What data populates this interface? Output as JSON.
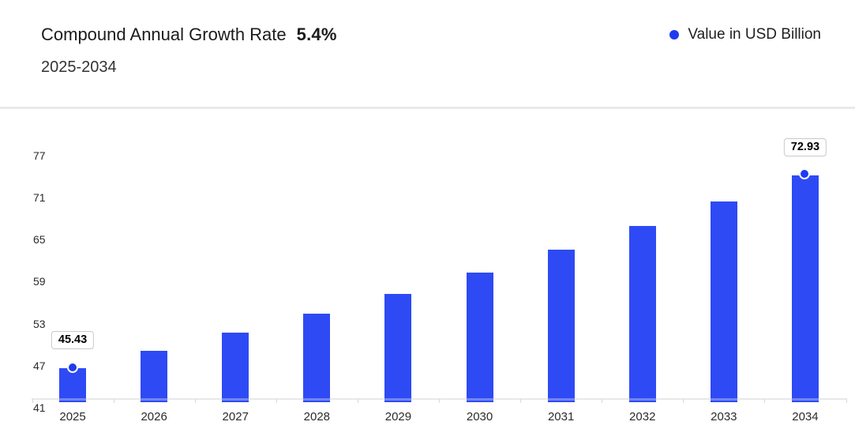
{
  "header": {
    "title": "Compound Annual Growth Rate",
    "cagr_label": "5.4%",
    "subtitle": "2025-2034"
  },
  "legend": {
    "label": "Value in USD Billion"
  },
  "colors": {
    "bar": "#2E4AF5",
    "bar_stripe": "#7285F4",
    "marker": "#1E3BF0",
    "legend_dot": "#1E3BF0",
    "axis_line": "#E8E8E8",
    "tick": "#D8D8D8",
    "callout_border": "#C9C9C9"
  },
  "chart_data": {
    "type": "bar",
    "title": "Compound Annual Growth Rate 5.4%",
    "subtitle": "2025-2034",
    "cagr_percent": 5.4,
    "categories": [
      "2025",
      "2026",
      "2027",
      "2028",
      "2029",
      "2030",
      "2031",
      "2032",
      "2033",
      "2034"
    ],
    "series": [
      {
        "name": "Value in USD Billion",
        "values": [
          45.43,
          47.88,
          50.47,
          53.19,
          56.06,
          59.09,
          62.28,
          65.64,
          69.19,
          72.93
        ]
      }
    ],
    "xlabel": "",
    "ylabel": "",
    "y_ticks": [
      41,
      47,
      53,
      59,
      65,
      71,
      77
    ],
    "ylim": [
      41,
      77
    ],
    "grid": false,
    "legend_position": "top-right",
    "callouts": [
      {
        "index": 0,
        "label": "45.43"
      },
      {
        "index": 9,
        "label": "72.93"
      }
    ]
  }
}
